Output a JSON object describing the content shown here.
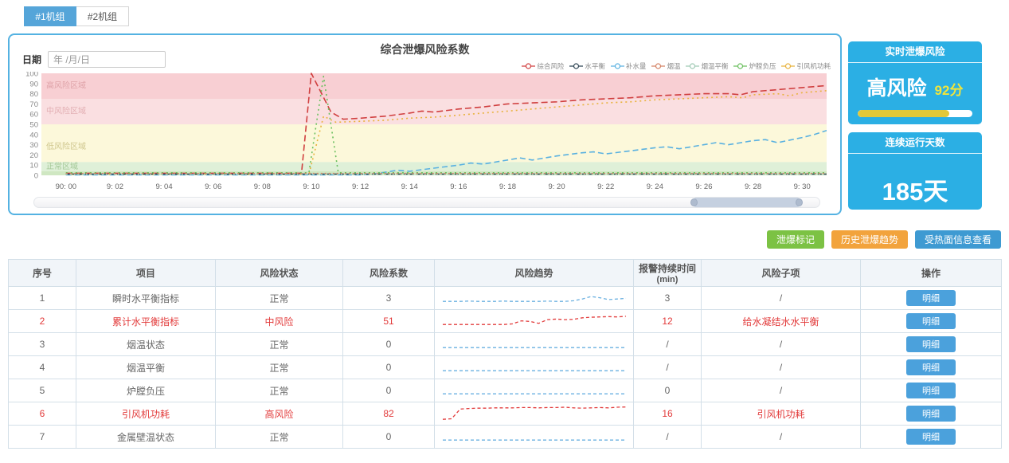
{
  "tabs": [
    {
      "label": "#1机组",
      "active": true
    },
    {
      "label": "#2机组",
      "active": false
    }
  ],
  "chart_panel": {
    "date_label": "日期",
    "date_placeholder": "年 /月/日"
  },
  "chart_data": {
    "type": "line",
    "title": "综合泄爆风险系数",
    "ylim": [
      0,
      100
    ],
    "y_ticks": [
      0,
      10,
      20,
      30,
      40,
      50,
      60,
      70,
      80,
      90,
      100
    ],
    "x_ticks": [
      "90: 00",
      "9: 02",
      "9: 04",
      "9: 06",
      "9: 08",
      "9: 10",
      "9: 12",
      "9: 14",
      "9: 16",
      "9: 18",
      "9: 20",
      "9: 22",
      "9: 24",
      "9: 26",
      "9: 28",
      "9: 30"
    ],
    "grid": false,
    "legend_position": "top-right",
    "zones": [
      {
        "label": "高风险区域",
        "from": 75,
        "to": 100,
        "color": "#f8cfd3",
        "label_color": "#dfa3a8",
        "label_v": 88
      },
      {
        "label": "中风险区域",
        "from": 50,
        "to": 75,
        "color": "#fadfe1",
        "label_color": "#e2afb3",
        "label_v": 63
      },
      {
        "label": "低风险区域",
        "from": 13,
        "to": 50,
        "color": "#fcf8da",
        "label_color": "#cfc68d",
        "label_v": 28
      },
      {
        "label": "正常区域",
        "from": 4,
        "to": 13,
        "color": "#dff0d8",
        "label_color": "#a3c795",
        "label_v": 8.5
      },
      {
        "label": "",
        "from": 0,
        "to": 4,
        "color": "#cfe7c2",
        "label_color": "#a3c795",
        "label_v": 2
      }
    ],
    "legend": [
      {
        "label": "综合风险",
        "color": "#d03f3f"
      },
      {
        "label": "水平衡",
        "color": "#2f4554"
      },
      {
        "label": "补水量",
        "color": "#5ab1e0"
      },
      {
        "label": "烟温",
        "color": "#d48265"
      },
      {
        "label": "烟温平衡",
        "color": "#9fc9b4"
      },
      {
        "label": "炉膛负压",
        "color": "#6abf5e"
      },
      {
        "label": "引风机功耗",
        "color": "#e8b23c"
      }
    ],
    "series": [
      {
        "name": "综合风险",
        "color": "#d03f3f",
        "dash": "8,4",
        "points": [
          [
            0,
            2
          ],
          [
            2,
            2
          ],
          [
            4,
            2
          ],
          [
            6,
            2
          ],
          [
            8,
            2
          ],
          [
            9.6,
            2
          ],
          [
            10,
            100
          ],
          [
            10.8,
            62
          ],
          [
            11.3,
            55
          ],
          [
            12,
            56
          ],
          [
            13,
            58
          ],
          [
            14,
            61
          ],
          [
            14.5,
            63
          ],
          [
            15,
            62
          ],
          [
            16,
            65
          ],
          [
            17,
            67
          ],
          [
            18,
            70
          ],
          [
            19,
            71
          ],
          [
            20,
            72
          ],
          [
            21,
            74
          ],
          [
            22,
            75
          ],
          [
            23,
            76
          ],
          [
            24,
            78
          ],
          [
            25,
            79
          ],
          [
            26,
            80
          ],
          [
            27,
            80
          ],
          [
            27.5,
            79
          ],
          [
            28,
            82
          ],
          [
            29,
            84
          ],
          [
            30,
            86
          ],
          [
            31,
            88
          ]
        ]
      },
      {
        "name": "引风机功耗",
        "color": "#e8b23c",
        "dash": "2,4",
        "points": [
          [
            0,
            1
          ],
          [
            3,
            1
          ],
          [
            6,
            1
          ],
          [
            9,
            1
          ],
          [
            9.9,
            1
          ],
          [
            10.5,
            58
          ],
          [
            11,
            52
          ],
          [
            12,
            53
          ],
          [
            13,
            54
          ],
          [
            14,
            56
          ],
          [
            15,
            57
          ],
          [
            16,
            59
          ],
          [
            17,
            61
          ],
          [
            18,
            63
          ],
          [
            19,
            65
          ],
          [
            20,
            67
          ],
          [
            21,
            69
          ],
          [
            22,
            71
          ],
          [
            23,
            72
          ],
          [
            24,
            74
          ],
          [
            25,
            75
          ],
          [
            26,
            76
          ],
          [
            27,
            77
          ],
          [
            27.6,
            76
          ],
          [
            28,
            79
          ],
          [
            29,
            80
          ],
          [
            29.5,
            78
          ],
          [
            30,
            81
          ],
          [
            31,
            83
          ]
        ]
      },
      {
        "name": "补水量",
        "color": "#5ab1e0",
        "dash": "7,4",
        "points": [
          [
            0,
            0.5
          ],
          [
            4,
            0.5
          ],
          [
            8,
            0.5
          ],
          [
            12,
            0.5
          ],
          [
            12.5,
            1
          ],
          [
            13,
            3
          ],
          [
            13.5,
            5
          ],
          [
            14,
            4
          ],
          [
            15,
            7
          ],
          [
            16,
            10
          ],
          [
            16.5,
            12
          ],
          [
            17,
            11
          ],
          [
            18,
            15
          ],
          [
            18.5,
            17
          ],
          [
            19,
            15
          ],
          [
            20,
            19
          ],
          [
            21,
            22
          ],
          [
            21.5,
            23
          ],
          [
            22,
            21
          ],
          [
            23,
            24
          ],
          [
            24,
            27
          ],
          [
            24.5,
            28
          ],
          [
            25,
            26
          ],
          [
            26,
            30
          ],
          [
            26.5,
            32
          ],
          [
            27,
            30
          ],
          [
            28,
            34
          ],
          [
            28.5,
            35
          ],
          [
            29,
            32
          ],
          [
            30,
            37
          ],
          [
            30.5,
            40
          ],
          [
            31,
            44
          ]
        ]
      },
      {
        "name": "炉膛负压",
        "color": "#6abf5e",
        "dash": "2,4",
        "points": [
          [
            0,
            2.5
          ],
          [
            3,
            2.5
          ],
          [
            6,
            2.5
          ],
          [
            9,
            2.5
          ],
          [
            9.9,
            2.5
          ],
          [
            10.5,
            97
          ],
          [
            11.1,
            2.5
          ],
          [
            15,
            2.5
          ],
          [
            20,
            2.5
          ],
          [
            25,
            2.5
          ],
          [
            31,
            2.5
          ]
        ]
      },
      {
        "name": "水平衡",
        "color": "#2f4554",
        "dash": "5,3",
        "points": [
          [
            0,
            1.2
          ],
          [
            31,
            1.2
          ]
        ]
      },
      {
        "name": "烟温",
        "color": "#d48265",
        "dash": "2,3",
        "points": [
          [
            0,
            1.8
          ],
          [
            31,
            1.8
          ]
        ]
      },
      {
        "name": "烟温平衡",
        "color": "#9fc9b4",
        "dash": "2,3",
        "points": [
          [
            0,
            0.8
          ],
          [
            31,
            0.8
          ]
        ]
      }
    ]
  },
  "risk_card": {
    "header": "实时泄爆风险",
    "level": "高风险",
    "score": "92分",
    "progress_pct": 80
  },
  "days_card": {
    "header": "连续运行天数",
    "value": "185天"
  },
  "actions": [
    {
      "label": "泄爆标记",
      "color": "#7cc244"
    },
    {
      "label": "历史泄爆趋势",
      "color": "#f2a33c"
    },
    {
      "label": "受热面信息查看",
      "color": "#3e9ad2"
    }
  ],
  "table": {
    "headers": [
      "序号",
      "项目",
      "风险状态",
      "风险系数",
      "风险趋势",
      "报警持续时间\n(min)",
      "风险子项",
      "操作"
    ],
    "detail_label": "明细",
    "trend_colors": {
      "normal": "#6ab0e0",
      "alert": "#e23c3c"
    },
    "rows": [
      {
        "no": "1",
        "item": "瞬时水平衡指标",
        "status": "正常",
        "coef": "3",
        "alarm": "3",
        "sub": "/",
        "alert": false,
        "trend": [
          1,
          1,
          1,
          1.1,
          1,
          1,
          1,
          1.1,
          1,
          1,
          1,
          1,
          1.1,
          1,
          1,
          1.2,
          1.8,
          2.6,
          2.2,
          1.6,
          1.8,
          2
        ]
      },
      {
        "no": "2",
        "item": "累计水平衡指标",
        "status": "中风险",
        "coef": "51",
        "alarm": "12",
        "sub": "给水凝结水水平衡",
        "alert": true,
        "trend": [
          1,
          1,
          1,
          1,
          1,
          1,
          1,
          1,
          1.2,
          2.2,
          2,
          1.4,
          2.6,
          2.8,
          2.6,
          2.7,
          3.2,
          3.4,
          3.5,
          3.6,
          3.5,
          3.7
        ]
      },
      {
        "no": "3",
        "item": "烟温状态",
        "status": "正常",
        "coef": "0",
        "alarm": "/",
        "sub": "/",
        "alert": false,
        "trend": [
          1,
          1,
          1,
          1,
          1,
          1,
          1,
          1,
          1,
          1,
          1,
          1,
          1,
          1,
          1,
          1,
          1,
          1,
          1,
          1,
          1,
          1
        ]
      },
      {
        "no": "4",
        "item": "烟温平衡",
        "status": "正常",
        "coef": "0",
        "alarm": "/",
        "sub": "/",
        "alert": false,
        "trend": [
          1,
          1,
          1,
          1,
          1,
          1,
          1,
          1,
          1,
          1,
          1,
          1,
          1,
          1,
          1,
          1,
          1,
          1,
          1,
          1,
          1,
          1
        ]
      },
      {
        "no": "5",
        "item": "炉膛负压",
        "status": "正常",
        "coef": "0",
        "alarm": "0",
        "sub": "/",
        "alert": false,
        "trend": [
          1,
          1,
          1,
          1,
          1,
          1,
          1,
          1,
          1,
          1,
          1,
          1,
          1,
          1,
          1,
          1,
          1,
          1,
          1,
          1,
          1,
          1
        ]
      },
      {
        "no": "6",
        "item": "引风机功耗",
        "status": "高风险",
        "coef": "82",
        "alarm": "16",
        "sub": "引风机功耗",
        "alert": true,
        "trend": [
          0.2,
          0.4,
          3.6,
          3.8,
          3.9,
          3.9,
          4,
          4,
          4,
          4.1,
          4.1,
          4,
          4.1,
          4.1,
          4.2,
          4,
          3.9,
          4,
          4.1,
          4,
          4.2,
          4.3
        ]
      },
      {
        "no": "7",
        "item": "金属壁温状态",
        "status": "正常",
        "coef": "0",
        "alarm": "/",
        "sub": "/",
        "alert": false,
        "trend": [
          1,
          1,
          1,
          1,
          1,
          1,
          1,
          1,
          1,
          1,
          1,
          1,
          1,
          1,
          1,
          1,
          1,
          1,
          1,
          1,
          1,
          1
        ]
      }
    ]
  }
}
